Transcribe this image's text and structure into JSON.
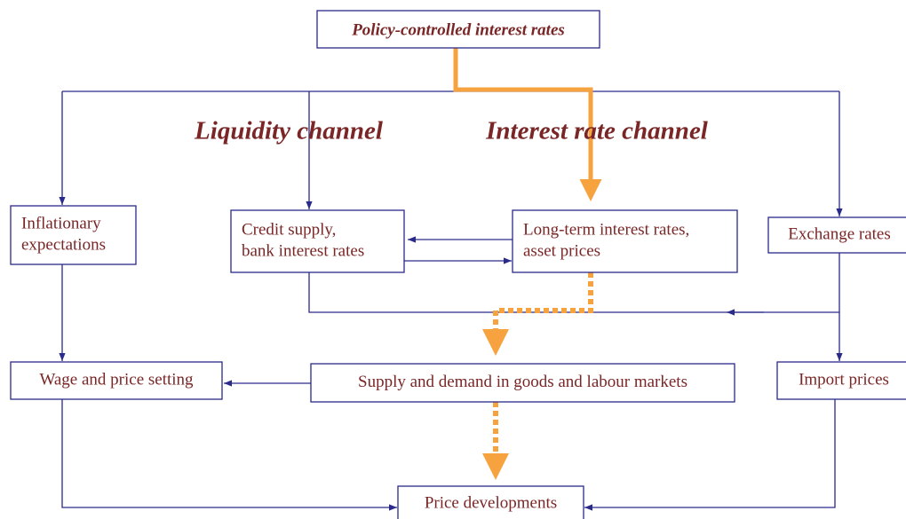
{
  "title": "Policy-controlled interest rates",
  "channels": [
    "Liquidity channel",
    "Interest rate channel"
  ],
  "nodes": [
    {
      "lines": [
        "Inflationary",
        "expectations"
      ]
    },
    {
      "lines": [
        "Credit supply,",
        "bank interest rates"
      ]
    },
    {
      "lines": [
        "Long-term interest rates,",
        "asset prices"
      ]
    },
    {
      "lines": [
        "Exchange rates"
      ]
    },
    {
      "lines": [
        "Wage and price setting"
      ]
    },
    {
      "lines": [
        "Supply and demand in goods and labour markets"
      ]
    },
    {
      "lines": [
        "Import prices"
      ]
    },
    {
      "lines": [
        "Price developments"
      ]
    }
  ]
}
